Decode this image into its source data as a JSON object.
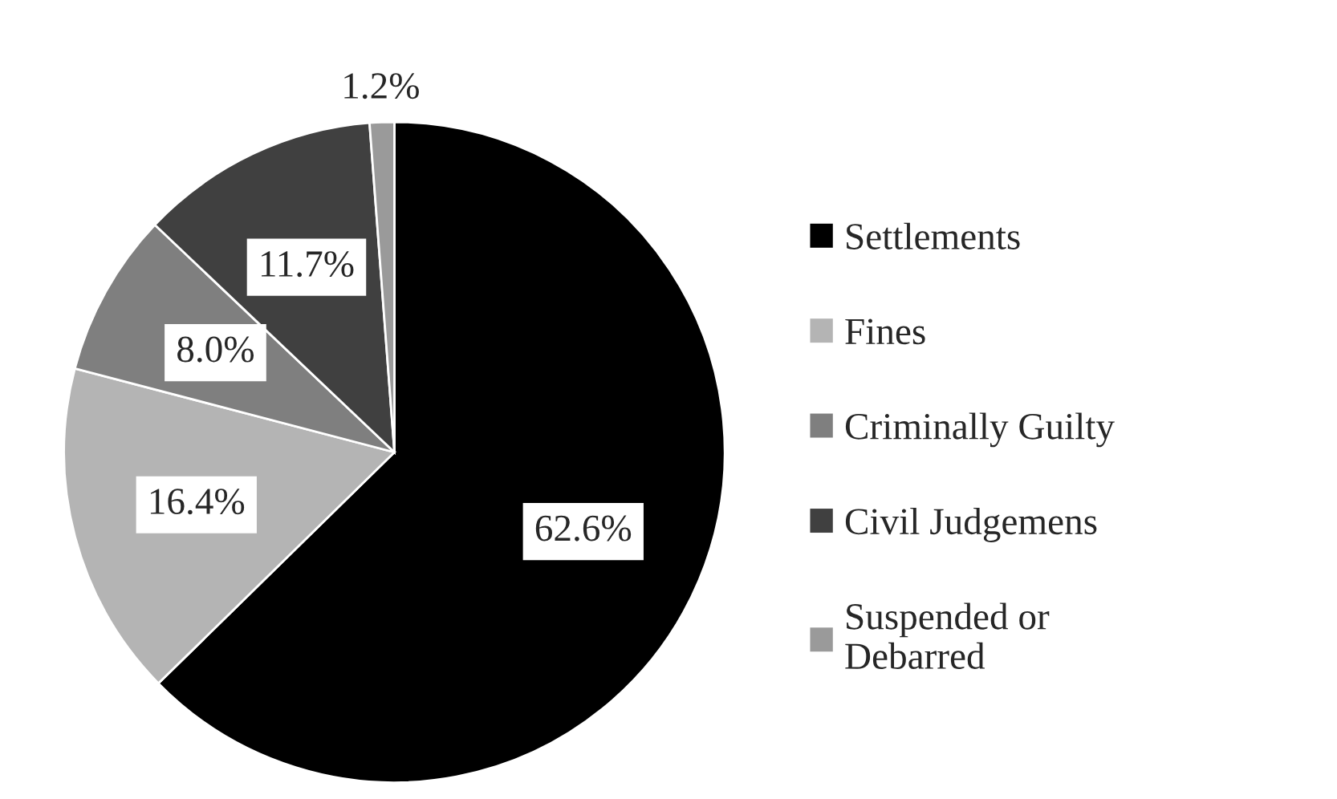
{
  "chart_data": {
    "type": "pie",
    "categories": [
      "Settlements",
      "Fines",
      "Criminally Guilty",
      "Civil Judgemens",
      "Suspended or\nDebarred"
    ],
    "values": [
      62.6,
      16.4,
      8.0,
      11.7,
      1.2
    ],
    "colors": [
      "#000000",
      "#b4b4b4",
      "#7f7f7f",
      "#404040",
      "#9a9a9a"
    ],
    "value_labels": [
      "62.6%",
      "16.4%",
      "8.0%",
      "11.7%",
      "1.2%"
    ],
    "legend": "right"
  }
}
